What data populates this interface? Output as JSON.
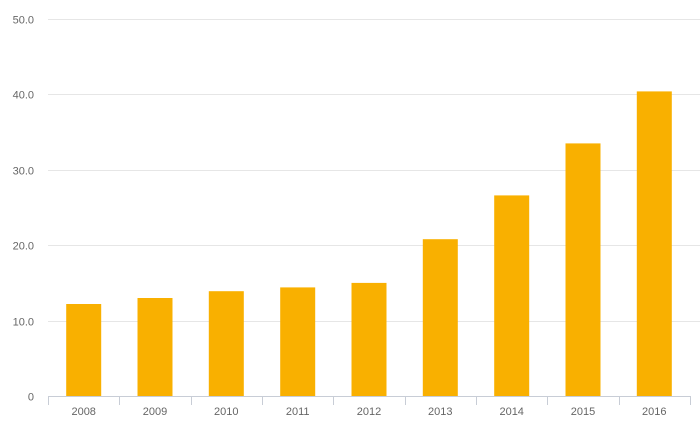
{
  "colors": {
    "bar": "#f9b000",
    "grid": "#e6e6e6",
    "axis": "#c8cdd6",
    "tick_label": "#666666"
  },
  "chart_data": {
    "type": "bar",
    "title": "",
    "xlabel": "",
    "ylabel": "",
    "categories": [
      "2008",
      "2009",
      "2010",
      "2011",
      "2012",
      "2013",
      "2014",
      "2015",
      "2016"
    ],
    "values": [
      12.2,
      13.0,
      13.9,
      14.4,
      15.0,
      20.8,
      26.6,
      33.5,
      40.4
    ],
    "ylim": [
      0,
      50
    ],
    "yticks": [
      0,
      10,
      20,
      30,
      40,
      50
    ],
    "ytick_labels": [
      "0",
      "10.0",
      "20.0",
      "30.0",
      "40.0",
      "50.0"
    ],
    "grid": true,
    "legend": "none"
  }
}
